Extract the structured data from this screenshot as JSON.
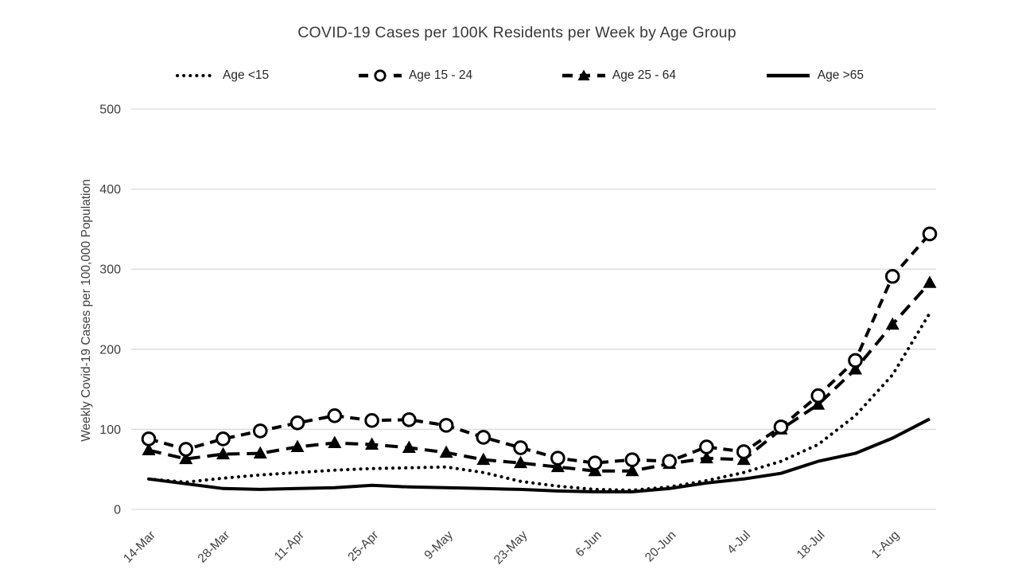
{
  "page": {
    "background": "#ffffff"
  },
  "colors": {
    "line": "#000000",
    "grid": "#d9d9d9",
    "text": "#404040",
    "marker_fill": "#ffffff"
  },
  "chart_data": {
    "type": "line",
    "title": "COVID-19 Cases per 100K Residents per Week by Age Group",
    "xlabel": "",
    "ylabel": "Weekly Covid-19 Cases per 100,000 Population",
    "ylim": [
      0,
      500
    ],
    "y_ticks": [
      0,
      100,
      200,
      300,
      400,
      500
    ],
    "grid": "horizontal",
    "legend_position": "top",
    "x_tick_labels": [
      "14-Mar",
      "28-Mar",
      "11-Apr",
      "25-Apr",
      "9-May",
      "23-May",
      "6-Jun",
      "20-Jun",
      "4-Jul",
      "18-Jul",
      "1-Aug"
    ],
    "x_tick_every": 2,
    "categories": [
      "14-Mar",
      "21-Mar",
      "28-Mar",
      "4-Apr",
      "11-Apr",
      "18-Apr",
      "25-Apr",
      "2-May",
      "9-May",
      "16-May",
      "23-May",
      "30-May",
      "6-Jun",
      "13-Jun",
      "20-Jun",
      "27-Jun",
      "4-Jul",
      "11-Jul",
      "18-Jul",
      "25-Jul",
      "1-Aug",
      "8-Aug"
    ],
    "series": [
      {
        "name": "Age <15",
        "line_style": "dotted",
        "marker": "none",
        "color": "#000000",
        "values": [
          38,
          34,
          39,
          43,
          46,
          49,
          51,
          52,
          53,
          46,
          35,
          29,
          25,
          24,
          28,
          36,
          46,
          60,
          81,
          117,
          168,
          245
        ]
      },
      {
        "name": "Age 15 - 24",
        "line_style": "dashed",
        "marker": "open-circle",
        "color": "#000000",
        "values": [
          88,
          75,
          88,
          98,
          108,
          117,
          111,
          112,
          105,
          90,
          77,
          64,
          58,
          62,
          60,
          78,
          72,
          103,
          142,
          186,
          291,
          344
        ]
      },
      {
        "name": "Age 25 - 64",
        "line_style": "long-dash",
        "marker": "filled-triangle",
        "color": "#000000",
        "values": [
          74,
          63,
          69,
          70,
          78,
          83,
          81,
          77,
          71,
          62,
          58,
          53,
          48,
          48,
          57,
          64,
          62,
          100,
          131,
          175,
          231,
          283
        ]
      },
      {
        "name": "Age >65",
        "line_style": "solid",
        "marker": "none",
        "color": "#000000",
        "values": [
          38,
          32,
          26,
          25,
          26,
          27,
          30,
          28,
          27,
          26,
          25,
          23,
          22,
          22,
          26,
          33,
          38,
          45,
          60,
          70,
          89,
          113
        ]
      }
    ]
  }
}
